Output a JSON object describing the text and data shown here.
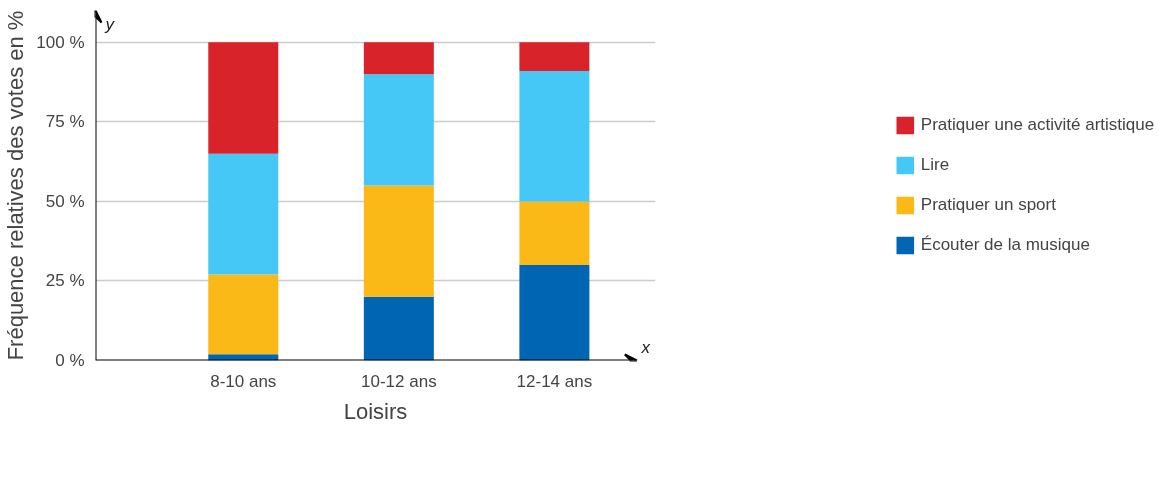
{
  "chart_data": {
    "type": "bar",
    "stacked": true,
    "xlabel": "Loisirs",
    "ylabel": "Fréquence relatives des votes en %",
    "categories": [
      "8-10 ans",
      "10-12 ans",
      "12-14 ans"
    ],
    "series": [
      {
        "name": "Écouter de la musique",
        "color": "#0066b3",
        "values": [
          2,
          20,
          30
        ]
      },
      {
        "name": "Pratiquer un sport",
        "color": "#fbb917",
        "values": [
          25,
          35,
          20
        ]
      },
      {
        "name": "Lire",
        "color": "#45c8f5",
        "values": [
          38,
          35,
          41
        ]
      },
      {
        "name": "Pratiquer une activité artistique",
        "color": "#d9232a",
        "values": [
          35,
          10,
          9
        ]
      }
    ],
    "ylim": [
      0,
      110
    ],
    "yticks": [
      {
        "value": 0,
        "label": "0 %"
      },
      {
        "value": 25,
        "label": "25 %"
      },
      {
        "value": 50,
        "label": "50 %"
      },
      {
        "value": 75,
        "label": "75 %"
      },
      {
        "value": 100,
        "label": "100 %"
      }
    ],
    "grid": "y",
    "legend": "right",
    "annotations": [
      "x",
      "y"
    ]
  }
}
